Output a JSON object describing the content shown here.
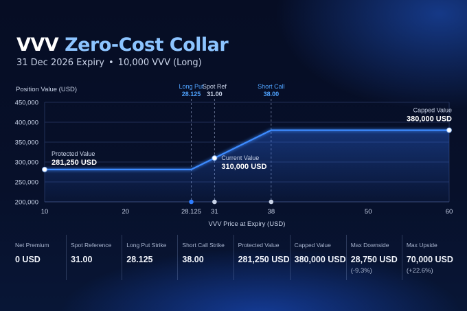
{
  "header": {
    "title_ticker": "VVV",
    "title_rest": "Zero-Cost Collar",
    "subtitle_expiry": "31 Dec 2026 Expiry",
    "subtitle_separator": "•",
    "subtitle_position": "10,000 VVV (Long)"
  },
  "chart_data": {
    "type": "line",
    "title": "",
    "xlabel": "VVV Price at Expiry (USD)",
    "ylabel": "Position Value (USD)",
    "xticks": [
      10,
      20,
      28.125,
      31,
      38,
      50,
      60
    ],
    "xtick_labels": [
      "10",
      "20",
      "28.125",
      "31",
      "38",
      "50",
      "60"
    ],
    "yticks": [
      200000,
      250000,
      300000,
      350000,
      400000,
      450000
    ],
    "ytick_labels": [
      "200,000",
      "250,000",
      "300,000",
      "350,000",
      "400,000",
      "450,000"
    ],
    "xlim": [
      10,
      60
    ],
    "ylim": [
      200000,
      450000
    ],
    "grid": "horizontal",
    "series": [
      {
        "values": [
          {
            "x": 10,
            "y": 281250
          },
          {
            "x": 28.125,
            "y": 281250
          },
          {
            "x": 38,
            "y": 380000
          },
          {
            "x": 60,
            "y": 380000
          }
        ]
      }
    ],
    "vlines": [
      {
        "x": 28.125,
        "label": "Long Put",
        "value_label": "28.125",
        "color": "#4fa3ff"
      },
      {
        "x": 31,
        "label": "Spot Ref",
        "value_label": "31.00",
        "color": "#c9d3e8"
      },
      {
        "x": 38,
        "label": "Short Call",
        "value_label": "38.00",
        "color": "#4fa3ff"
      }
    ],
    "points": [
      {
        "x": 10,
        "y": 281250,
        "label": "Protected Value",
        "value_label": "281,250 USD",
        "anchor": "right"
      },
      {
        "x": 31,
        "y": 310000,
        "label": "Current Value",
        "value_label": "310,000 USD",
        "anchor": "right"
      },
      {
        "x": 60,
        "y": 380000,
        "label": "Capped Value",
        "value_label": "380,000 USD",
        "anchor": "left"
      }
    ],
    "axis_markers": [
      {
        "x": 28.125,
        "color": "#2f7dff"
      },
      {
        "x": 31,
        "color": "#c9d3e8"
      },
      {
        "x": 38,
        "color": "#c9d3e8"
      }
    ],
    "colors": {
      "line": "#3d8bff",
      "grid": "#2a3a66",
      "text": "#c9d3e8"
    }
  },
  "stats": [
    {
      "label": "Net Premium",
      "value": "0 USD",
      "sub": ""
    },
    {
      "label": "Spot Reference",
      "value": "31.00",
      "sub": ""
    },
    {
      "label": "Long Put Strike",
      "value": "28.125",
      "sub": ""
    },
    {
      "label": "Short Call Strike",
      "value": "38.00",
      "sub": ""
    },
    {
      "label": "Protected Value",
      "value": "281,250 USD",
      "sub": ""
    },
    {
      "label": "Capped Value",
      "value": "380,000 USD",
      "sub": ""
    },
    {
      "label": "Max Downside",
      "value": "28,750 USD",
      "sub": "(-9.3%)"
    },
    {
      "label": "Max Upside",
      "value": "70,000 USD",
      "sub": "(+22.6%)"
    }
  ]
}
